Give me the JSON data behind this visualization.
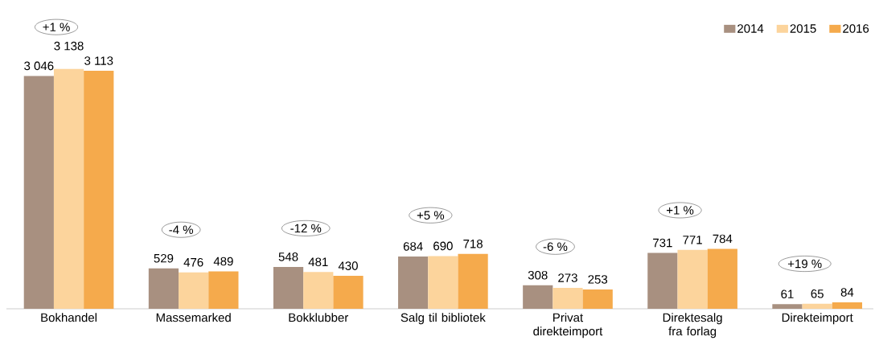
{
  "chart_data": {
    "type": "bar",
    "categories": [
      "Bokhandel",
      "Massemarked",
      "Bokklubber",
      "Salg til bibliotek",
      "Privat direkteimport",
      "Direktesalg fra forlag",
      "Direkteimport"
    ],
    "series": [
      {
        "name": "2014",
        "color": "#a89080",
        "values": [
          3046,
          529,
          548,
          684,
          308,
          731,
          61
        ],
        "value_labels": [
          "3 046",
          "529",
          "548",
          "684",
          "308",
          "731",
          "61"
        ]
      },
      {
        "name": "2015",
        "color": "#fcd49c",
        "values": [
          3138,
          476,
          481,
          690,
          273,
          771,
          65
        ],
        "value_labels": [
          "3 138",
          "476",
          "481",
          "690",
          "273",
          "771",
          "65"
        ]
      },
      {
        "name": "2016",
        "color": "#f5aa4c",
        "values": [
          3113,
          489,
          430,
          718,
          253,
          784,
          84
        ],
        "value_labels": [
          "3 113",
          "489",
          "430",
          "718",
          "253",
          "784",
          "84"
        ]
      }
    ],
    "legend": "top right",
    "annotations": [
      "+1 %",
      "-4 %",
      "-12 %",
      "+5 %",
      "-6 %",
      "+1 %",
      "+19 %"
    ]
  }
}
